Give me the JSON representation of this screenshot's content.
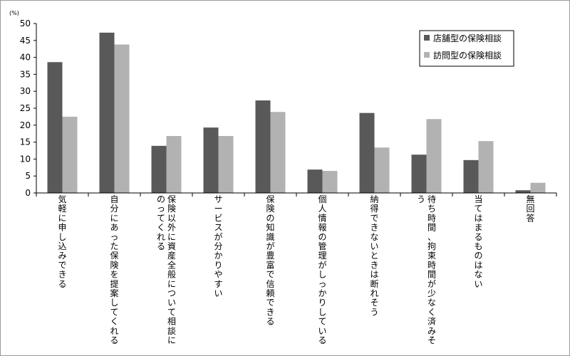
{
  "chart_data": {
    "type": "bar",
    "unit_label": "(%)",
    "ylim": [
      0,
      50
    ],
    "yticks": [
      0,
      5,
      10,
      15,
      20,
      25,
      30,
      35,
      40,
      45,
      50
    ],
    "grid": false,
    "legend_position": "top-right",
    "categories": [
      "気軽に申し込みできる",
      "自分にあった保険を提案してくれる",
      "保険以外に資産全般について相談にのってくれる",
      "サービスが分かりやすい",
      "保険の知識が豊富で信頼できる",
      "個人情報の管理がしっかりしている",
      "納得できないときは断れそう",
      "待ち時間、拘束時間が少なく済みそう",
      "当てはまるものはない",
      "無回答"
    ],
    "series": [
      {
        "name": "店舗型の保険相談",
        "color": "#595959",
        "values": [
          38.6,
          47.3,
          13.9,
          19.3,
          27.3,
          6.9,
          23.6,
          11.3,
          9.7,
          0.8
        ]
      },
      {
        "name": "訪問型の保険相談",
        "color": "#b2b2b2",
        "values": [
          22.5,
          43.8,
          16.8,
          16.8,
          23.9,
          6.5,
          13.4,
          21.8,
          15.3,
          3.0
        ]
      }
    ]
  }
}
